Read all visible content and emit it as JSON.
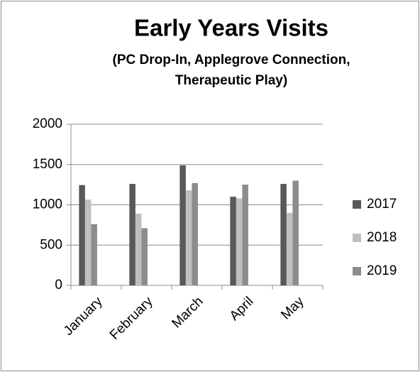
{
  "chart_data": {
    "type": "bar",
    "title": "Early Years Visits",
    "subtitle": [
      "(PC Drop-In, Applegrove Connection,",
      "Therapeutic Play)"
    ],
    "categories": [
      "January",
      "February",
      "March",
      "April",
      "May"
    ],
    "series": [
      {
        "name": "2017",
        "color": "#595959",
        "values": [
          1245,
          1260,
          1490,
          1100,
          1260
        ]
      },
      {
        "name": "2018",
        "color": "#bfbfbf",
        "values": [
          1065,
          890,
          1180,
          1080,
          900
        ]
      },
      {
        "name": "2019",
        "color": "#8c8c8c",
        "values": [
          760,
          710,
          1270,
          1250,
          1300
        ]
      }
    ],
    "ylim": [
      0,
      2000
    ],
    "yticks": [
      0,
      500,
      1000,
      1500,
      2000
    ],
    "grid": true,
    "legend": "right"
  }
}
